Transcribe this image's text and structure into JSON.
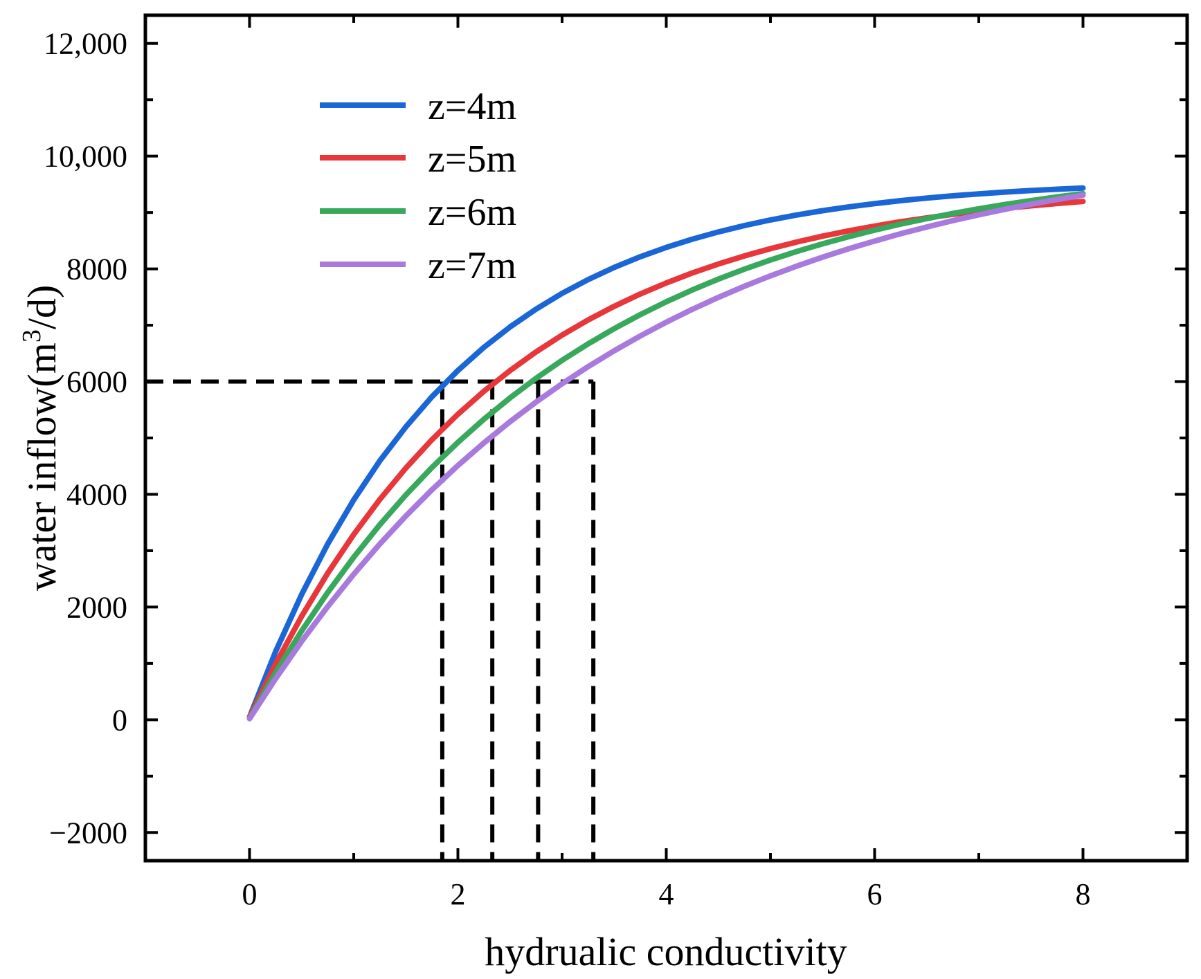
{
  "chart_data": {
    "type": "line",
    "title": "",
    "xlabel": "hydrualic conductivity",
    "ylabel_main": "water inflow(m",
    "ylabel_sup": "3",
    "ylabel_tail": "/d)",
    "xlim": [
      -1,
      9
    ],
    "ylim": [
      -2500,
      12500
    ],
    "x_ticks": [
      0,
      2,
      4,
      6,
      8
    ],
    "x_tick_labels": [
      "0",
      "2",
      "4",
      "6",
      "8"
    ],
    "x_minor_ticks": [
      1,
      3,
      5,
      7
    ],
    "y_ticks": [
      -2000,
      0,
      2000,
      4000,
      6000,
      8000,
      10000,
      12000
    ],
    "y_tick_labels": [
      "−2000",
      "0",
      "2000",
      "4000",
      "6000",
      "8000",
      "10,000",
      "12,000"
    ],
    "y_minor_ticks": [
      -1000,
      1000,
      3000,
      5000,
      7000,
      9000,
      11000
    ],
    "legend_position": "top-left",
    "x": [
      0,
      0.25,
      0.5,
      0.75,
      1,
      1.25,
      1.5,
      1.75,
      2,
      2.25,
      2.5,
      2.75,
      3,
      3.25,
      3.5,
      3.75,
      4,
      4.25,
      4.5,
      4.75,
      5,
      5.25,
      5.5,
      5.75,
      6,
      6.25,
      6.5,
      6.75,
      7,
      7.25,
      7.5,
      7.75,
      8
    ],
    "series": [
      {
        "name": "z=4m",
        "color": "#1a66d6",
        "values": [
          50,
          1209,
          2225,
          3118,
          3902,
          4592,
          5197,
          5730,
          6197,
          6608,
          6969,
          7286,
          7565,
          7810,
          8026,
          8215,
          8381,
          8527,
          8656,
          8769,
          8868,
          8955,
          9032,
          9099,
          9158,
          9210,
          9256,
          9296,
          9331,
          9362,
          9389,
          9413,
          9434
        ]
      },
      {
        "name": "z=5m",
        "color": "#e8373a",
        "values": [
          50,
          990,
          1837,
          2600,
          3288,
          3908,
          4466,
          4968,
          5421,
          5829,
          6196,
          6527,
          6825,
          7094,
          7336,
          7554,
          7750,
          7927,
          8086,
          8230,
          8359,
          8475,
          8580,
          8674,
          8759,
          8836,
          8905,
          8967,
          9023,
          9073,
          9118,
          9159,
          9196
        ]
      },
      {
        "name": "z=6m",
        "color": "#38a85c",
        "values": [
          30,
          836,
          1577,
          2258,
          2884,
          3460,
          3989,
          4475,
          4922,
          5333,
          5711,
          6058,
          6377,
          6670,
          6940,
          7188,
          7416,
          7625,
          7818,
          7995,
          8157,
          8307,
          8444,
          8571,
          8687,
          8794,
          8892,
          8982,
          9065,
          9141,
          9211,
          9276,
          9335
        ]
      },
      {
        "name": "z=7m",
        "color": "#a87ade",
        "values": [
          20,
          730,
          1392,
          2008,
          2582,
          3117,
          3615,
          4079,
          4511,
          4913,
          5288,
          5637,
          5962,
          6265,
          6547,
          6809,
          7054,
          7282,
          7494,
          7692,
          7876,
          8047,
          8207,
          8356,
          8494,
          8623,
          8743,
          8855,
          8959,
          9056,
          9146,
          9230,
          9308
        ]
      }
    ],
    "reference": {
      "y": 6000,
      "x_values": [
        1.85,
        2.33,
        2.77,
        3.3
      ]
    }
  }
}
